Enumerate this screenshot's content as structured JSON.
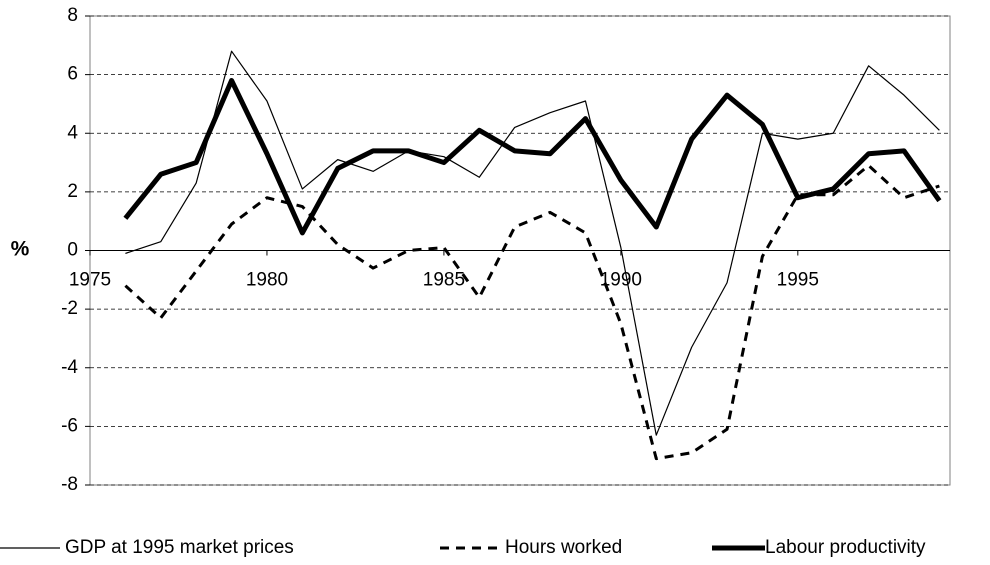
{
  "chart_data": {
    "type": "line",
    "y_label": "%",
    "x": [
      1976,
      1977,
      1978,
      1979,
      1980,
      1981,
      1982,
      1983,
      1984,
      1985,
      1986,
      1987,
      1988,
      1989,
      1990,
      1991,
      1992,
      1993,
      1994,
      1995,
      1996,
      1997,
      1998,
      1999
    ],
    "series": [
      {
        "name": "GDP at 1995 market prices",
        "color": "#000000",
        "line_width": 1.2,
        "line_style": "solid",
        "values": [
          -0.1,
          0.3,
          2.3,
          6.8,
          5.1,
          2.1,
          3.1,
          2.7,
          3.4,
          3.2,
          2.5,
          4.2,
          4.7,
          5.1,
          0.1,
          -6.3,
          -3.3,
          -1.1,
          4.0,
          3.8,
          4.0,
          6.3,
          5.3,
          4.1
        ]
      },
      {
        "name": "Hours worked",
        "color": "#000000",
        "line_width": 3,
        "line_style": "dashed",
        "values": [
          -1.2,
          -2.3,
          -0.7,
          0.9,
          1.8,
          1.5,
          0.2,
          -0.6,
          0.0,
          0.1,
          -1.6,
          0.8,
          1.3,
          0.6,
          -2.5,
          -7.1,
          -6.9,
          -6.1,
          -0.2,
          1.9,
          1.9,
          2.9,
          1.8,
          2.2
        ]
      },
      {
        "name": "Labour productivity",
        "color": "#000000",
        "line_width": 5,
        "line_style": "solid",
        "values": [
          1.1,
          2.6,
          3.0,
          5.8,
          3.3,
          0.6,
          2.8,
          3.4,
          3.4,
          3.0,
          4.1,
          3.4,
          3.3,
          4.5,
          2.4,
          0.8,
          3.8,
          5.3,
          4.3,
          1.8,
          2.1,
          3.3,
          3.4,
          1.7
        ]
      }
    ],
    "xlim": [
      1975,
      1999.3
    ],
    "xticks": [
      1975,
      1980,
      1985,
      1990,
      1995
    ],
    "ylim": [
      -8,
      8
    ],
    "yticks": [
      -8,
      -6,
      -4,
      -2,
      0,
      2,
      4,
      6,
      8
    ],
    "grid": true
  }
}
